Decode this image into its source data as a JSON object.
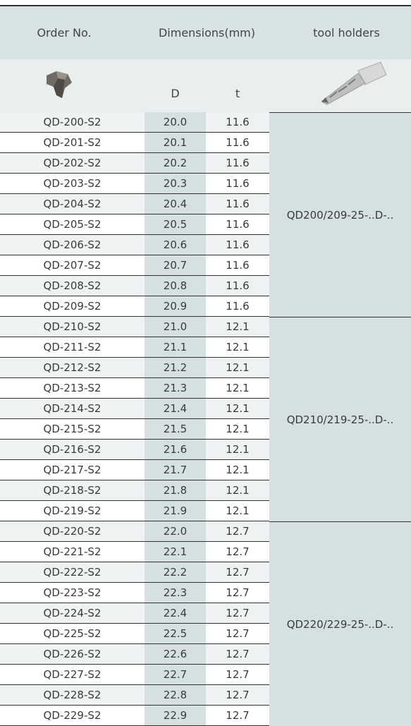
{
  "header": {
    "order_no": "Order No.",
    "dimensions": "Dimensions(mm)",
    "tool_holders": "tool holders",
    "d": "D",
    "t": "t"
  },
  "groups": [
    {
      "holder": "QD200/209-25-..D-..",
      "rows": [
        [
          "QD-200-S2",
          "20.0",
          "11.6"
        ],
        [
          "QD-201-S2",
          "20.1",
          "11.6"
        ],
        [
          "QD-202-S2",
          "20.2",
          "11.6"
        ],
        [
          "QD-203-S2",
          "20.3",
          "11.6"
        ],
        [
          "QD-204-S2",
          "20.4",
          "11.6"
        ],
        [
          "QD-205-S2",
          "20.5",
          "11.6"
        ],
        [
          "QD-206-S2",
          "20.6",
          "11.6"
        ],
        [
          "QD-207-S2",
          "20.7",
          "11.6"
        ],
        [
          "QD-208-S2",
          "20.8",
          "11.6"
        ],
        [
          "QD-209-S2",
          "20.9",
          "11.6"
        ]
      ]
    },
    {
      "holder": "QD210/219-25-..D-..",
      "rows": [
        [
          "QD-210-S2",
          "21.0",
          "12.1"
        ],
        [
          "QD-211-S2",
          "21.1",
          "12.1"
        ],
        [
          "QD-212-S2",
          "21.2",
          "12.1"
        ],
        [
          "QD-213-S2",
          "21.3",
          "12.1"
        ],
        [
          "QD-214-S2",
          "21.4",
          "12.1"
        ],
        [
          "QD-215-S2",
          "21.5",
          "12.1"
        ],
        [
          "QD-216-S2",
          "21.6",
          "12.1"
        ],
        [
          "QD-217-S2",
          "21.7",
          "12.1"
        ],
        [
          "QD-218-S2",
          "21.8",
          "12.1"
        ],
        [
          "QD-219-S2",
          "21.9",
          "12.1"
        ]
      ]
    },
    {
      "holder": "QD220/229-25-..D-..",
      "rows": [
        [
          "QD-220-S2",
          "22.0",
          "12.7"
        ],
        [
          "QD-221-S2",
          "22.1",
          "12.7"
        ],
        [
          "QD-222-S2",
          "22.2",
          "12.7"
        ],
        [
          "QD-223-S2",
          "22.3",
          "12.7"
        ],
        [
          "QD-224-S2",
          "22.4",
          "12.7"
        ],
        [
          "QD-225-S2",
          "22.5",
          "12.7"
        ],
        [
          "QD-226-S2",
          "22.6",
          "12.7"
        ],
        [
          "QD-227-S2",
          "22.7",
          "12.7"
        ],
        [
          "QD-228-S2",
          "22.8",
          "12.7"
        ],
        [
          "QD-229-S2",
          "22.9",
          "12.7"
        ]
      ]
    }
  ]
}
